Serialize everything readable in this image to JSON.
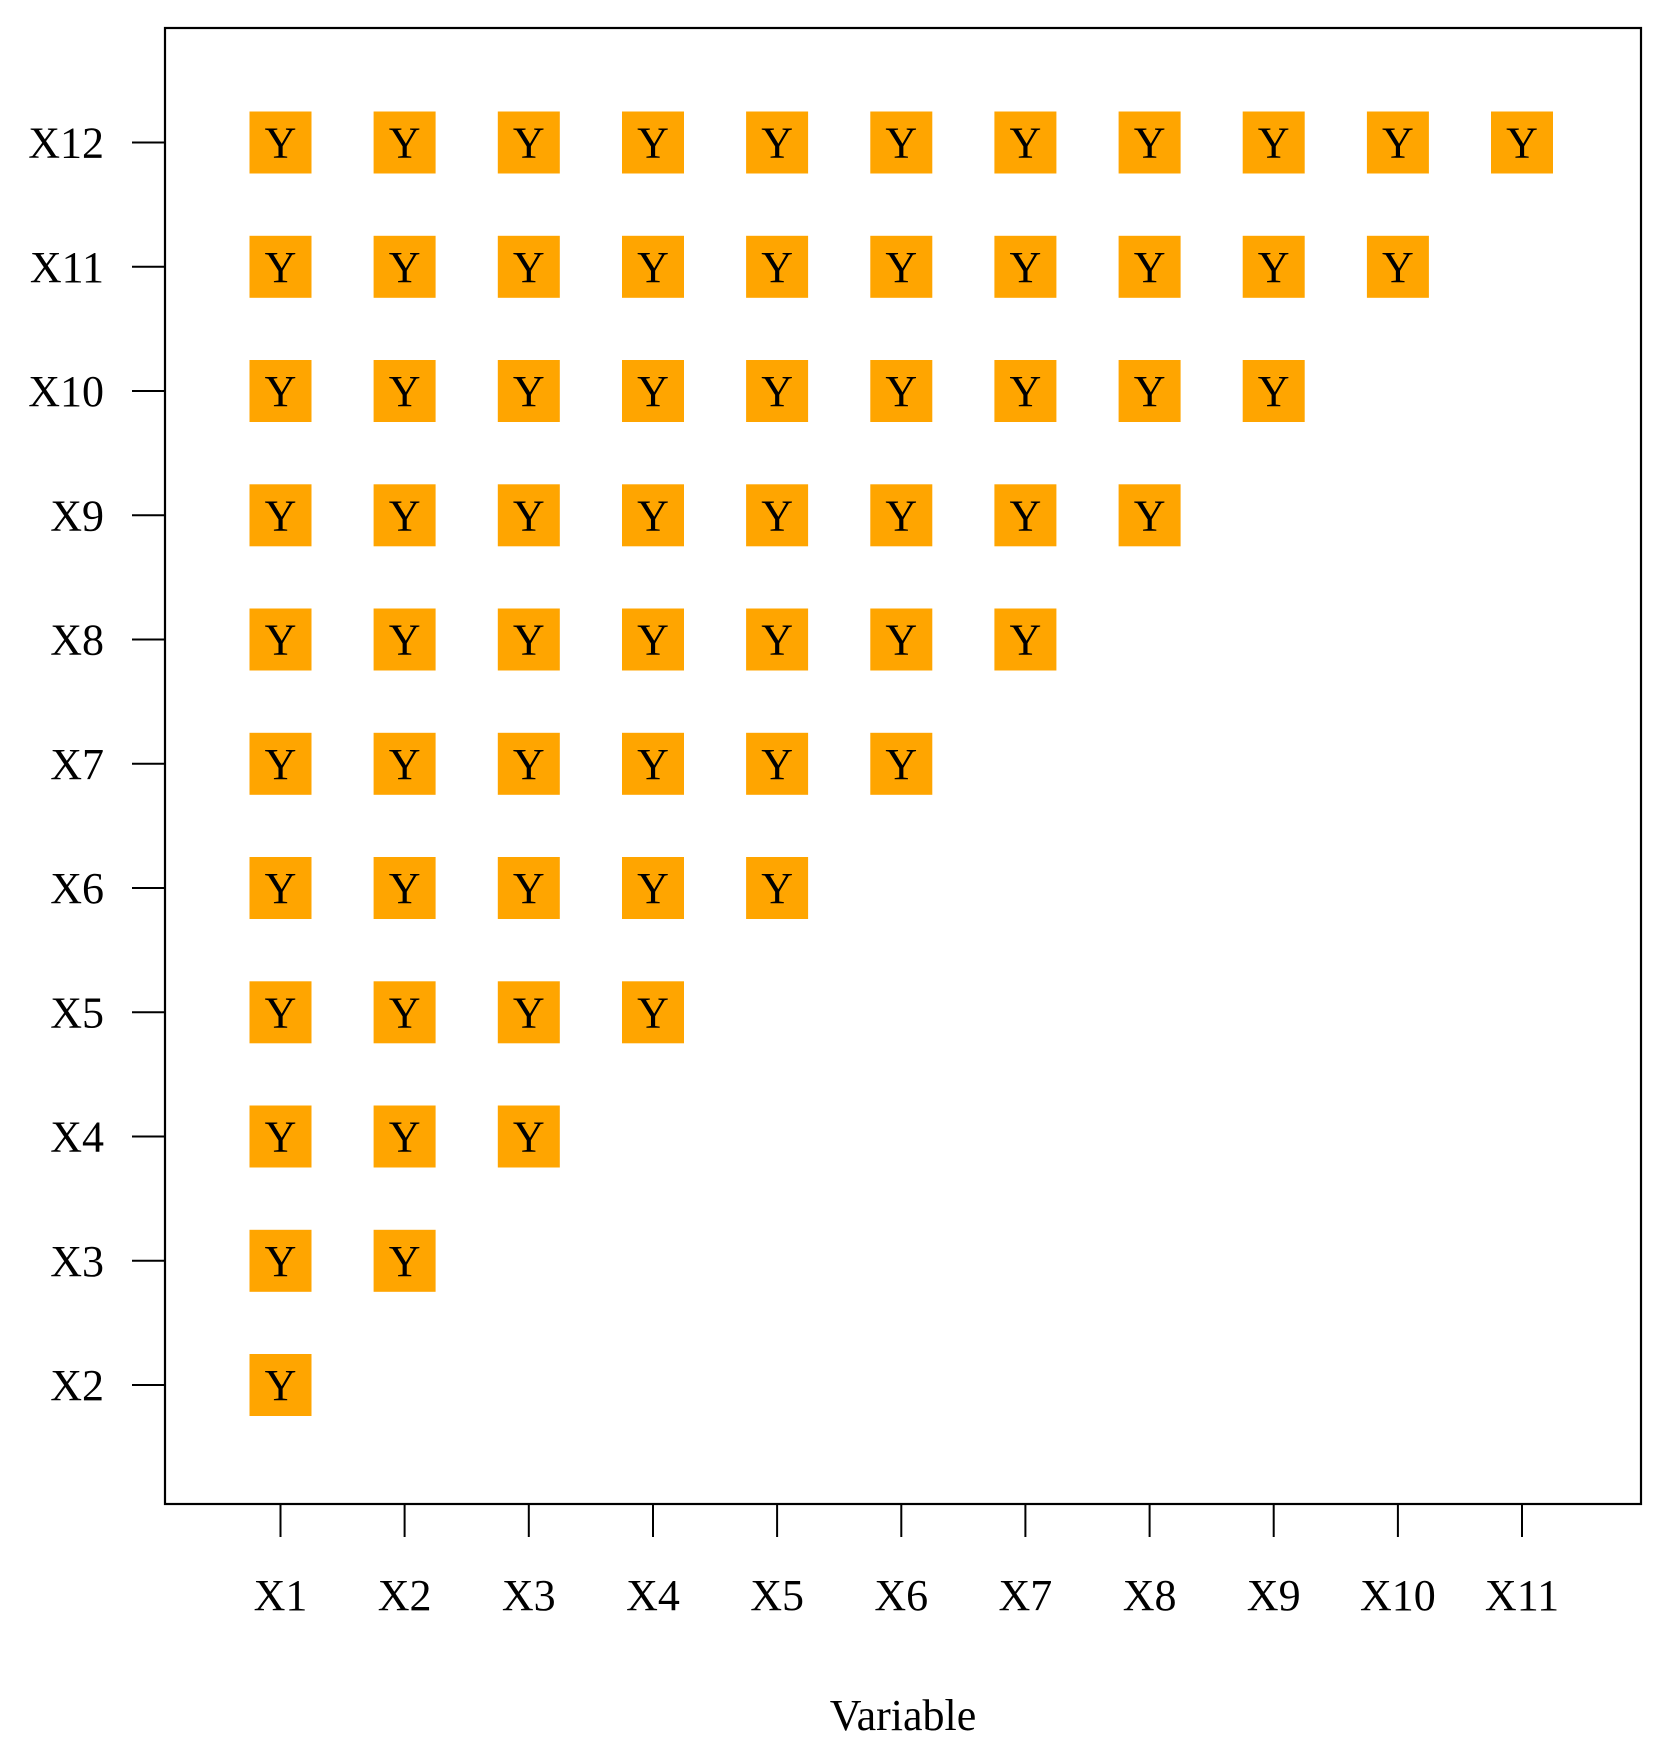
{
  "chart_data": {
    "type": "heatmap",
    "title": "",
    "xlabel": "Variable",
    "ylabel": "",
    "x_categories": [
      "X1",
      "X2",
      "X3",
      "X4",
      "X5",
      "X6",
      "X7",
      "X8",
      "X9",
      "X10",
      "X11"
    ],
    "y_categories": [
      "X2",
      "X3",
      "X4",
      "X5",
      "X6",
      "X7",
      "X8",
      "X9",
      "X10",
      "X11",
      "X12"
    ],
    "cell_label": "Y",
    "cell_color": "#FFA500",
    "cells": [
      {
        "x": "X1",
        "y": "X2",
        "label": "Y"
      },
      {
        "x": "X1",
        "y": "X3",
        "label": "Y"
      },
      {
        "x": "X2",
        "y": "X3",
        "label": "Y"
      },
      {
        "x": "X1",
        "y": "X4",
        "label": "Y"
      },
      {
        "x": "X2",
        "y": "X4",
        "label": "Y"
      },
      {
        "x": "X3",
        "y": "X4",
        "label": "Y"
      },
      {
        "x": "X1",
        "y": "X5",
        "label": "Y"
      },
      {
        "x": "X2",
        "y": "X5",
        "label": "Y"
      },
      {
        "x": "X3",
        "y": "X5",
        "label": "Y"
      },
      {
        "x": "X4",
        "y": "X5",
        "label": "Y"
      },
      {
        "x": "X1",
        "y": "X6",
        "label": "Y"
      },
      {
        "x": "X2",
        "y": "X6",
        "label": "Y"
      },
      {
        "x": "X3",
        "y": "X6",
        "label": "Y"
      },
      {
        "x": "X4",
        "y": "X6",
        "label": "Y"
      },
      {
        "x": "X5",
        "y": "X6",
        "label": "Y"
      },
      {
        "x": "X1",
        "y": "X7",
        "label": "Y"
      },
      {
        "x": "X2",
        "y": "X7",
        "label": "Y"
      },
      {
        "x": "X3",
        "y": "X7",
        "label": "Y"
      },
      {
        "x": "X4",
        "y": "X7",
        "label": "Y"
      },
      {
        "x": "X5",
        "y": "X7",
        "label": "Y"
      },
      {
        "x": "X6",
        "y": "X7",
        "label": "Y"
      },
      {
        "x": "X1",
        "y": "X8",
        "label": "Y"
      },
      {
        "x": "X2",
        "y": "X8",
        "label": "Y"
      },
      {
        "x": "X3",
        "y": "X8",
        "label": "Y"
      },
      {
        "x": "X4",
        "y": "X8",
        "label": "Y"
      },
      {
        "x": "X5",
        "y": "X8",
        "label": "Y"
      },
      {
        "x": "X6",
        "y": "X8",
        "label": "Y"
      },
      {
        "x": "X7",
        "y": "X8",
        "label": "Y"
      },
      {
        "x": "X1",
        "y": "X9",
        "label": "Y"
      },
      {
        "x": "X2",
        "y": "X9",
        "label": "Y"
      },
      {
        "x": "X3",
        "y": "X9",
        "label": "Y"
      },
      {
        "x": "X4",
        "y": "X9",
        "label": "Y"
      },
      {
        "x": "X5",
        "y": "X9",
        "label": "Y"
      },
      {
        "x": "X6",
        "y": "X9",
        "label": "Y"
      },
      {
        "x": "X7",
        "y": "X9",
        "label": "Y"
      },
      {
        "x": "X8",
        "y": "X9",
        "label": "Y"
      },
      {
        "x": "X1",
        "y": "X10",
        "label": "Y"
      },
      {
        "x": "X2",
        "y": "X10",
        "label": "Y"
      },
      {
        "x": "X3",
        "y": "X10",
        "label": "Y"
      },
      {
        "x": "X4",
        "y": "X10",
        "label": "Y"
      },
      {
        "x": "X5",
        "y": "X10",
        "label": "Y"
      },
      {
        "x": "X6",
        "y": "X10",
        "label": "Y"
      },
      {
        "x": "X7",
        "y": "X10",
        "label": "Y"
      },
      {
        "x": "X8",
        "y": "X10",
        "label": "Y"
      },
      {
        "x": "X9",
        "y": "X10",
        "label": "Y"
      },
      {
        "x": "X1",
        "y": "X11",
        "label": "Y"
      },
      {
        "x": "X2",
        "y": "X11",
        "label": "Y"
      },
      {
        "x": "X3",
        "y": "X11",
        "label": "Y"
      },
      {
        "x": "X4",
        "y": "X11",
        "label": "Y"
      },
      {
        "x": "X5",
        "y": "X11",
        "label": "Y"
      },
      {
        "x": "X6",
        "y": "X11",
        "label": "Y"
      },
      {
        "x": "X7",
        "y": "X11",
        "label": "Y"
      },
      {
        "x": "X8",
        "y": "X11",
        "label": "Y"
      },
      {
        "x": "X9",
        "y": "X11",
        "label": "Y"
      },
      {
        "x": "X10",
        "y": "X11",
        "label": "Y"
      },
      {
        "x": "X1",
        "y": "X12",
        "label": "Y"
      },
      {
        "x": "X2",
        "y": "X12",
        "label": "Y"
      },
      {
        "x": "X3",
        "y": "X12",
        "label": "Y"
      },
      {
        "x": "X4",
        "y": "X12",
        "label": "Y"
      },
      {
        "x": "X5",
        "y": "X12",
        "label": "Y"
      },
      {
        "x": "X6",
        "y": "X12",
        "label": "Y"
      },
      {
        "x": "X7",
        "y": "X12",
        "label": "Y"
      },
      {
        "x": "X8",
        "y": "X12",
        "label": "Y"
      },
      {
        "x": "X9",
        "y": "X12",
        "label": "Y"
      },
      {
        "x": "X10",
        "y": "X12",
        "label": "Y"
      },
      {
        "x": "X11",
        "y": "X12",
        "label": "Y"
      }
    ],
    "grid": false,
    "legend": "none"
  }
}
